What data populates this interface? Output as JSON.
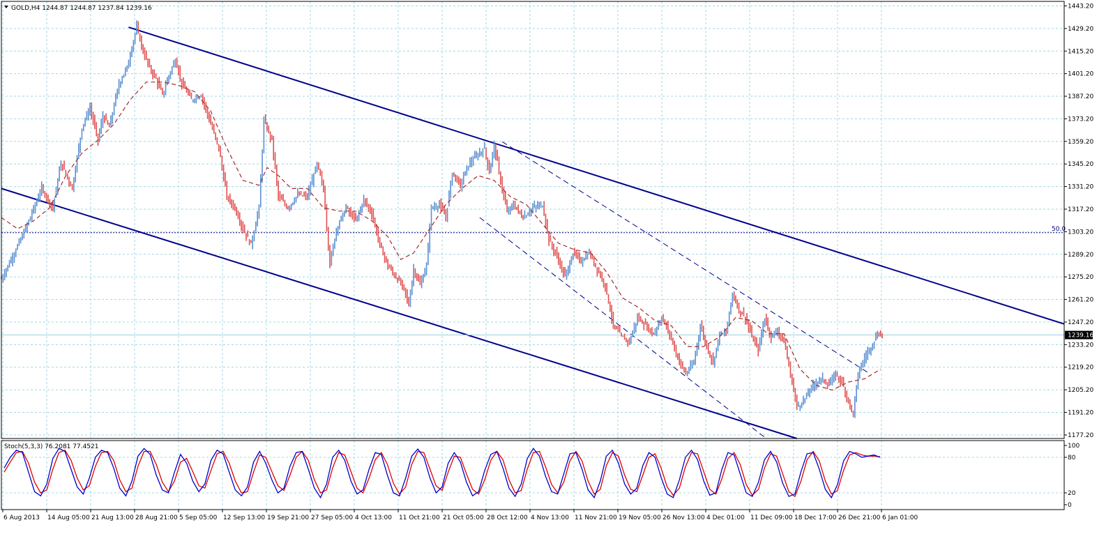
{
  "chart_data": [
    {
      "type": "candlestick",
      "title": "GOLD,H4  1244.87 1244.87 1237.84 1239.16",
      "symbol": "GOLD",
      "timeframe": "H4",
      "last_bar": {
        "open": 1244.87,
        "high": 1244.87,
        "low": 1237.84,
        "close": 1239.16
      },
      "price_marker": "1239.16",
      "ylim": [
        1175,
        1446
      ],
      "y_ticks": [
        "1443.20",
        "1429.20",
        "1415.20",
        "1401.20",
        "1387.20",
        "1373.20",
        "1359.20",
        "1345.20",
        "1331.20",
        "1317.20",
        "1303.20",
        "1289.20",
        "1275.20",
        "1261.20",
        "1247.20",
        "1233.20",
        "1219.20",
        "1205.20",
        "1191.20",
        "1177.20"
      ],
      "x_ticks": [
        "6 Aug 2013",
        "14 Aug 05:00",
        "21 Aug 13:00",
        "28 Aug 21:00",
        "5 Sep 05:00",
        "12 Sep 13:00",
        "19 Sep 21:00",
        "27 Sep 05:00",
        "4 Oct 13:00",
        "11 Oct 21:00",
        "21 Oct 05:00",
        "28 Oct 12:00",
        "4 Nov 13:00",
        "11 Nov 21:00",
        "19 Nov 05:00",
        "26 Nov 13:00",
        "4 Dec 01:00",
        "11 Dec 09:00",
        "18 Dec 17:00",
        "26 Dec 21:00",
        "6 Jan 01:00"
      ],
      "fib_level": {
        "label": "50.0",
        "price": 1302.6
      },
      "price_path": [
        {
          "x": 0,
          "y": 1274
        },
        {
          "x": 8,
          "y": 1290
        },
        {
          "x": 15,
          "y": 1305
        },
        {
          "x": 25,
          "y": 1330
        },
        {
          "x": 32,
          "y": 1318
        },
        {
          "x": 37,
          "y": 1346
        },
        {
          "x": 44,
          "y": 1330
        },
        {
          "x": 50,
          "y": 1368
        },
        {
          "x": 55,
          "y": 1380
        },
        {
          "x": 60,
          "y": 1360
        },
        {
          "x": 63,
          "y": 1375
        },
        {
          "x": 67,
          "y": 1368
        },
        {
          "x": 73,
          "y": 1395
        },
        {
          "x": 78,
          "y": 1405
        },
        {
          "x": 84,
          "y": 1430
        },
        {
          "x": 88,
          "y": 1415
        },
        {
          "x": 92,
          "y": 1405
        },
        {
          "x": 96,
          "y": 1398
        },
        {
          "x": 100,
          "y": 1388
        },
        {
          "x": 104,
          "y": 1400
        },
        {
          "x": 108,
          "y": 1410
        },
        {
          "x": 112,
          "y": 1395
        },
        {
          "x": 118,
          "y": 1385
        },
        {
          "x": 124,
          "y": 1388
        },
        {
          "x": 130,
          "y": 1370
        },
        {
          "x": 135,
          "y": 1355
        },
        {
          "x": 140,
          "y": 1325
        },
        {
          "x": 145,
          "y": 1318
        },
        {
          "x": 150,
          "y": 1305
        },
        {
          "x": 155,
          "y": 1295
        },
        {
          "x": 160,
          "y": 1318
        },
        {
          "x": 163,
          "y": 1372
        },
        {
          "x": 168,
          "y": 1360
        },
        {
          "x": 172,
          "y": 1325
        },
        {
          "x": 178,
          "y": 1318
        },
        {
          "x": 184,
          "y": 1326
        },
        {
          "x": 190,
          "y": 1325
        },
        {
          "x": 196,
          "y": 1345
        },
        {
          "x": 200,
          "y": 1330
        },
        {
          "x": 204,
          "y": 1283
        },
        {
          "x": 208,
          "y": 1305
        },
        {
          "x": 214,
          "y": 1318
        },
        {
          "x": 220,
          "y": 1310
        },
        {
          "x": 225,
          "y": 1323
        },
        {
          "x": 230,
          "y": 1315
        },
        {
          "x": 235,
          "y": 1295
        },
        {
          "x": 240,
          "y": 1282
        },
        {
          "x": 245,
          "y": 1275
        },
        {
          "x": 250,
          "y": 1268
        },
        {
          "x": 253,
          "y": 1258
        },
        {
          "x": 256,
          "y": 1280
        },
        {
          "x": 260,
          "y": 1270
        },
        {
          "x": 264,
          "y": 1282
        },
        {
          "x": 267,
          "y": 1318
        },
        {
          "x": 272,
          "y": 1320
        },
        {
          "x": 276,
          "y": 1312
        },
        {
          "x": 280,
          "y": 1340
        },
        {
          "x": 285,
          "y": 1332
        },
        {
          "x": 290,
          "y": 1345
        },
        {
          "x": 295,
          "y": 1350
        },
        {
          "x": 300,
          "y": 1355
        },
        {
          "x": 303,
          "y": 1340
        },
        {
          "x": 306,
          "y": 1357
        },
        {
          "x": 310,
          "y": 1335
        },
        {
          "x": 314,
          "y": 1315
        },
        {
          "x": 318,
          "y": 1320
        },
        {
          "x": 324,
          "y": 1312
        },
        {
          "x": 330,
          "y": 1318
        },
        {
          "x": 336,
          "y": 1320
        },
        {
          "x": 340,
          "y": 1298
        },
        {
          "x": 345,
          "y": 1288
        },
        {
          "x": 350,
          "y": 1275
        },
        {
          "x": 355,
          "y": 1290
        },
        {
          "x": 360,
          "y": 1285
        },
        {
          "x": 365,
          "y": 1290
        },
        {
          "x": 370,
          "y": 1280
        },
        {
          "x": 375,
          "y": 1270
        },
        {
          "x": 380,
          "y": 1245
        },
        {
          "x": 385,
          "y": 1238
        },
        {
          "x": 390,
          "y": 1235
        },
        {
          "x": 395,
          "y": 1250
        },
        {
          "x": 400,
          "y": 1245
        },
        {
          "x": 405,
          "y": 1240
        },
        {
          "x": 410,
          "y": 1250
        },
        {
          "x": 415,
          "y": 1240
        },
        {
          "x": 420,
          "y": 1225
        },
        {
          "x": 425,
          "y": 1215
        },
        {
          "x": 430,
          "y": 1222
        },
        {
          "x": 434,
          "y": 1245
        },
        {
          "x": 438,
          "y": 1232
        },
        {
          "x": 442,
          "y": 1222
        },
        {
          "x": 446,
          "y": 1240
        },
        {
          "x": 450,
          "y": 1240
        },
        {
          "x": 454,
          "y": 1265
        },
        {
          "x": 458,
          "y": 1255
        },
        {
          "x": 462,
          "y": 1250
        },
        {
          "x": 466,
          "y": 1238
        },
        {
          "x": 470,
          "y": 1230
        },
        {
          "x": 474,
          "y": 1250
        },
        {
          "x": 478,
          "y": 1238
        },
        {
          "x": 482,
          "y": 1242
        },
        {
          "x": 486,
          "y": 1235
        },
        {
          "x": 490,
          "y": 1215
        },
        {
          "x": 494,
          "y": 1195
        },
        {
          "x": 498,
          "y": 1198
        },
        {
          "x": 502,
          "y": 1205
        },
        {
          "x": 506,
          "y": 1210
        },
        {
          "x": 510,
          "y": 1212
        },
        {
          "x": 514,
          "y": 1208
        },
        {
          "x": 518,
          "y": 1215
        },
        {
          "x": 522,
          "y": 1210
        },
        {
          "x": 526,
          "y": 1198
        },
        {
          "x": 529,
          "y": 1190
        },
        {
          "x": 532,
          "y": 1215
        },
        {
          "x": 536,
          "y": 1225
        },
        {
          "x": 540,
          "y": 1232
        },
        {
          "x": 544,
          "y": 1240
        },
        {
          "x": 547,
          "y": 1239
        }
      ],
      "ma_path": [
        {
          "x": 0,
          "y": 1312
        },
        {
          "x": 10,
          "y": 1305
        },
        {
          "x": 20,
          "y": 1310
        },
        {
          "x": 30,
          "y": 1318
        },
        {
          "x": 40,
          "y": 1338
        },
        {
          "x": 50,
          "y": 1352
        },
        {
          "x": 60,
          "y": 1360
        },
        {
          "x": 70,
          "y": 1370
        },
        {
          "x": 80,
          "y": 1385
        },
        {
          "x": 90,
          "y": 1396
        },
        {
          "x": 100,
          "y": 1396
        },
        {
          "x": 110,
          "y": 1394
        },
        {
          "x": 120,
          "y": 1390
        },
        {
          "x": 130,
          "y": 1378
        },
        {
          "x": 140,
          "y": 1355
        },
        {
          "x": 150,
          "y": 1335
        },
        {
          "x": 160,
          "y": 1332
        },
        {
          "x": 165,
          "y": 1343
        },
        {
          "x": 172,
          "y": 1338
        },
        {
          "x": 180,
          "y": 1330
        },
        {
          "x": 190,
          "y": 1330
        },
        {
          "x": 200,
          "y": 1318
        },
        {
          "x": 210,
          "y": 1316
        },
        {
          "x": 220,
          "y": 1316
        },
        {
          "x": 230,
          "y": 1310
        },
        {
          "x": 240,
          "y": 1300
        },
        {
          "x": 248,
          "y": 1286
        },
        {
          "x": 256,
          "y": 1290
        },
        {
          "x": 266,
          "y": 1305
        },
        {
          "x": 276,
          "y": 1320
        },
        {
          "x": 286,
          "y": 1330
        },
        {
          "x": 296,
          "y": 1338
        },
        {
          "x": 306,
          "y": 1335
        },
        {
          "x": 316,
          "y": 1325
        },
        {
          "x": 326,
          "y": 1320
        },
        {
          "x": 336,
          "y": 1308
        },
        {
          "x": 346,
          "y": 1296
        },
        {
          "x": 356,
          "y": 1292
        },
        {
          "x": 366,
          "y": 1290
        },
        {
          "x": 376,
          "y": 1278
        },
        {
          "x": 386,
          "y": 1262
        },
        {
          "x": 396,
          "y": 1256
        },
        {
          "x": 406,
          "y": 1248
        },
        {
          "x": 416,
          "y": 1245
        },
        {
          "x": 426,
          "y": 1232
        },
        {
          "x": 436,
          "y": 1232
        },
        {
          "x": 446,
          "y": 1238
        },
        {
          "x": 456,
          "y": 1250
        },
        {
          "x": 466,
          "y": 1248
        },
        {
          "x": 476,
          "y": 1240
        },
        {
          "x": 486,
          "y": 1240
        },
        {
          "x": 496,
          "y": 1218
        },
        {
          "x": 506,
          "y": 1208
        },
        {
          "x": 516,
          "y": 1205
        },
        {
          "x": 526,
          "y": 1210
        },
        {
          "x": 536,
          "y": 1212
        },
        {
          "x": 546,
          "y": 1218
        }
      ],
      "channel_lines": [
        {
          "style": "solid",
          "from": {
            "x": 79,
            "y": 1430
          },
          "to": {
            "x": 660,
            "y": 1246
          }
        },
        {
          "style": "solid",
          "from": {
            "x": 0,
            "y": 1330
          },
          "to": {
            "x": 494,
            "y": 1175
          }
        },
        {
          "style": "dashed",
          "from": {
            "x": 311,
            "y": 1359
          },
          "to": {
            "x": 538,
            "y": 1216
          }
        },
        {
          "style": "dashed",
          "from": {
            "x": 297,
            "y": 1312
          },
          "to": {
            "x": 475,
            "y": 1175
          }
        }
      ]
    },
    {
      "type": "line",
      "title": "Stoch(5,3,3) 76.2081 77.4521",
      "ylim": [
        0,
        100
      ],
      "y_ticks": [
        "100",
        "80",
        "20",
        "0"
      ],
      "series": [
        {
          "name": "main",
          "color": "#0000cc"
        },
        {
          "name": "signal",
          "color": "#dd0000"
        }
      ],
      "values_main": [
        62,
        80,
        92,
        88,
        55,
        22,
        15,
        35,
        78,
        95,
        90,
        60,
        30,
        18,
        45,
        80,
        92,
        88,
        62,
        28,
        15,
        40,
        82,
        95,
        85,
        50,
        25,
        20,
        55,
        85,
        70,
        40,
        22,
        35,
        75,
        92,
        86,
        55,
        25,
        15,
        30,
        72,
        90,
        70,
        42,
        20,
        28,
        65,
        88,
        90,
        60,
        28,
        12,
        35,
        80,
        92,
        75,
        40,
        18,
        25,
        60,
        88,
        85,
        50,
        20,
        15,
        45,
        82,
        94,
        80,
        45,
        20,
        30,
        70,
        88,
        72,
        38,
        15,
        22,
        58,
        85,
        90,
        62,
        28,
        14,
        35,
        78,
        95,
        82,
        48,
        22,
        18,
        52,
        86,
        88,
        60,
        25,
        12,
        40,
        82,
        92,
        70,
        35,
        18,
        28,
        66,
        88,
        80,
        46,
        18,
        12,
        42,
        80,
        92,
        76,
        40,
        16,
        20,
        60,
        88,
        84,
        52,
        20,
        14,
        38,
        76,
        90,
        72,
        36,
        14,
        18,
        56,
        86,
        88,
        60,
        26,
        12,
        34,
        74,
        90,
        86,
        80,
        82,
        84,
        80
      ],
      "values_signal": [
        55,
        72,
        88,
        90,
        70,
        38,
        20,
        25,
        60,
        88,
        92,
        75,
        45,
        25,
        32,
        65,
        88,
        90,
        75,
        42,
        22,
        28,
        65,
        90,
        90,
        68,
        38,
        22,
        40,
        72,
        78,
        56,
        32,
        28,
        58,
        86,
        90,
        70,
        40,
        20,
        22,
        55,
        84,
        80,
        56,
        32,
        24,
        50,
        80,
        90,
        75,
        42,
        20,
        25,
        62,
        88,
        84,
        56,
        28,
        20,
        45,
        76,
        88,
        68,
        36,
        18,
        30,
        68,
        90,
        88,
        60,
        32,
        24,
        55,
        82,
        80,
        52,
        26,
        18,
        42,
        75,
        90,
        76,
        42,
        20,
        24,
        60,
        88,
        90,
        64,
        34,
        20,
        38,
        74,
        90,
        74,
        40,
        18,
        26,
        66,
        88,
        82,
        50,
        26,
        22,
        50,
        80,
        86,
        62,
        30,
        16,
        28,
        64,
        88,
        86,
        56,
        26,
        18,
        44,
        78,
        88,
        68,
        34,
        16,
        26,
        62,
        86,
        82,
        52,
        22,
        14,
        40,
        76,
        90,
        74,
        40,
        18,
        24,
        58,
        84,
        88,
        84,
        82,
        82,
        81
      ]
    }
  ]
}
